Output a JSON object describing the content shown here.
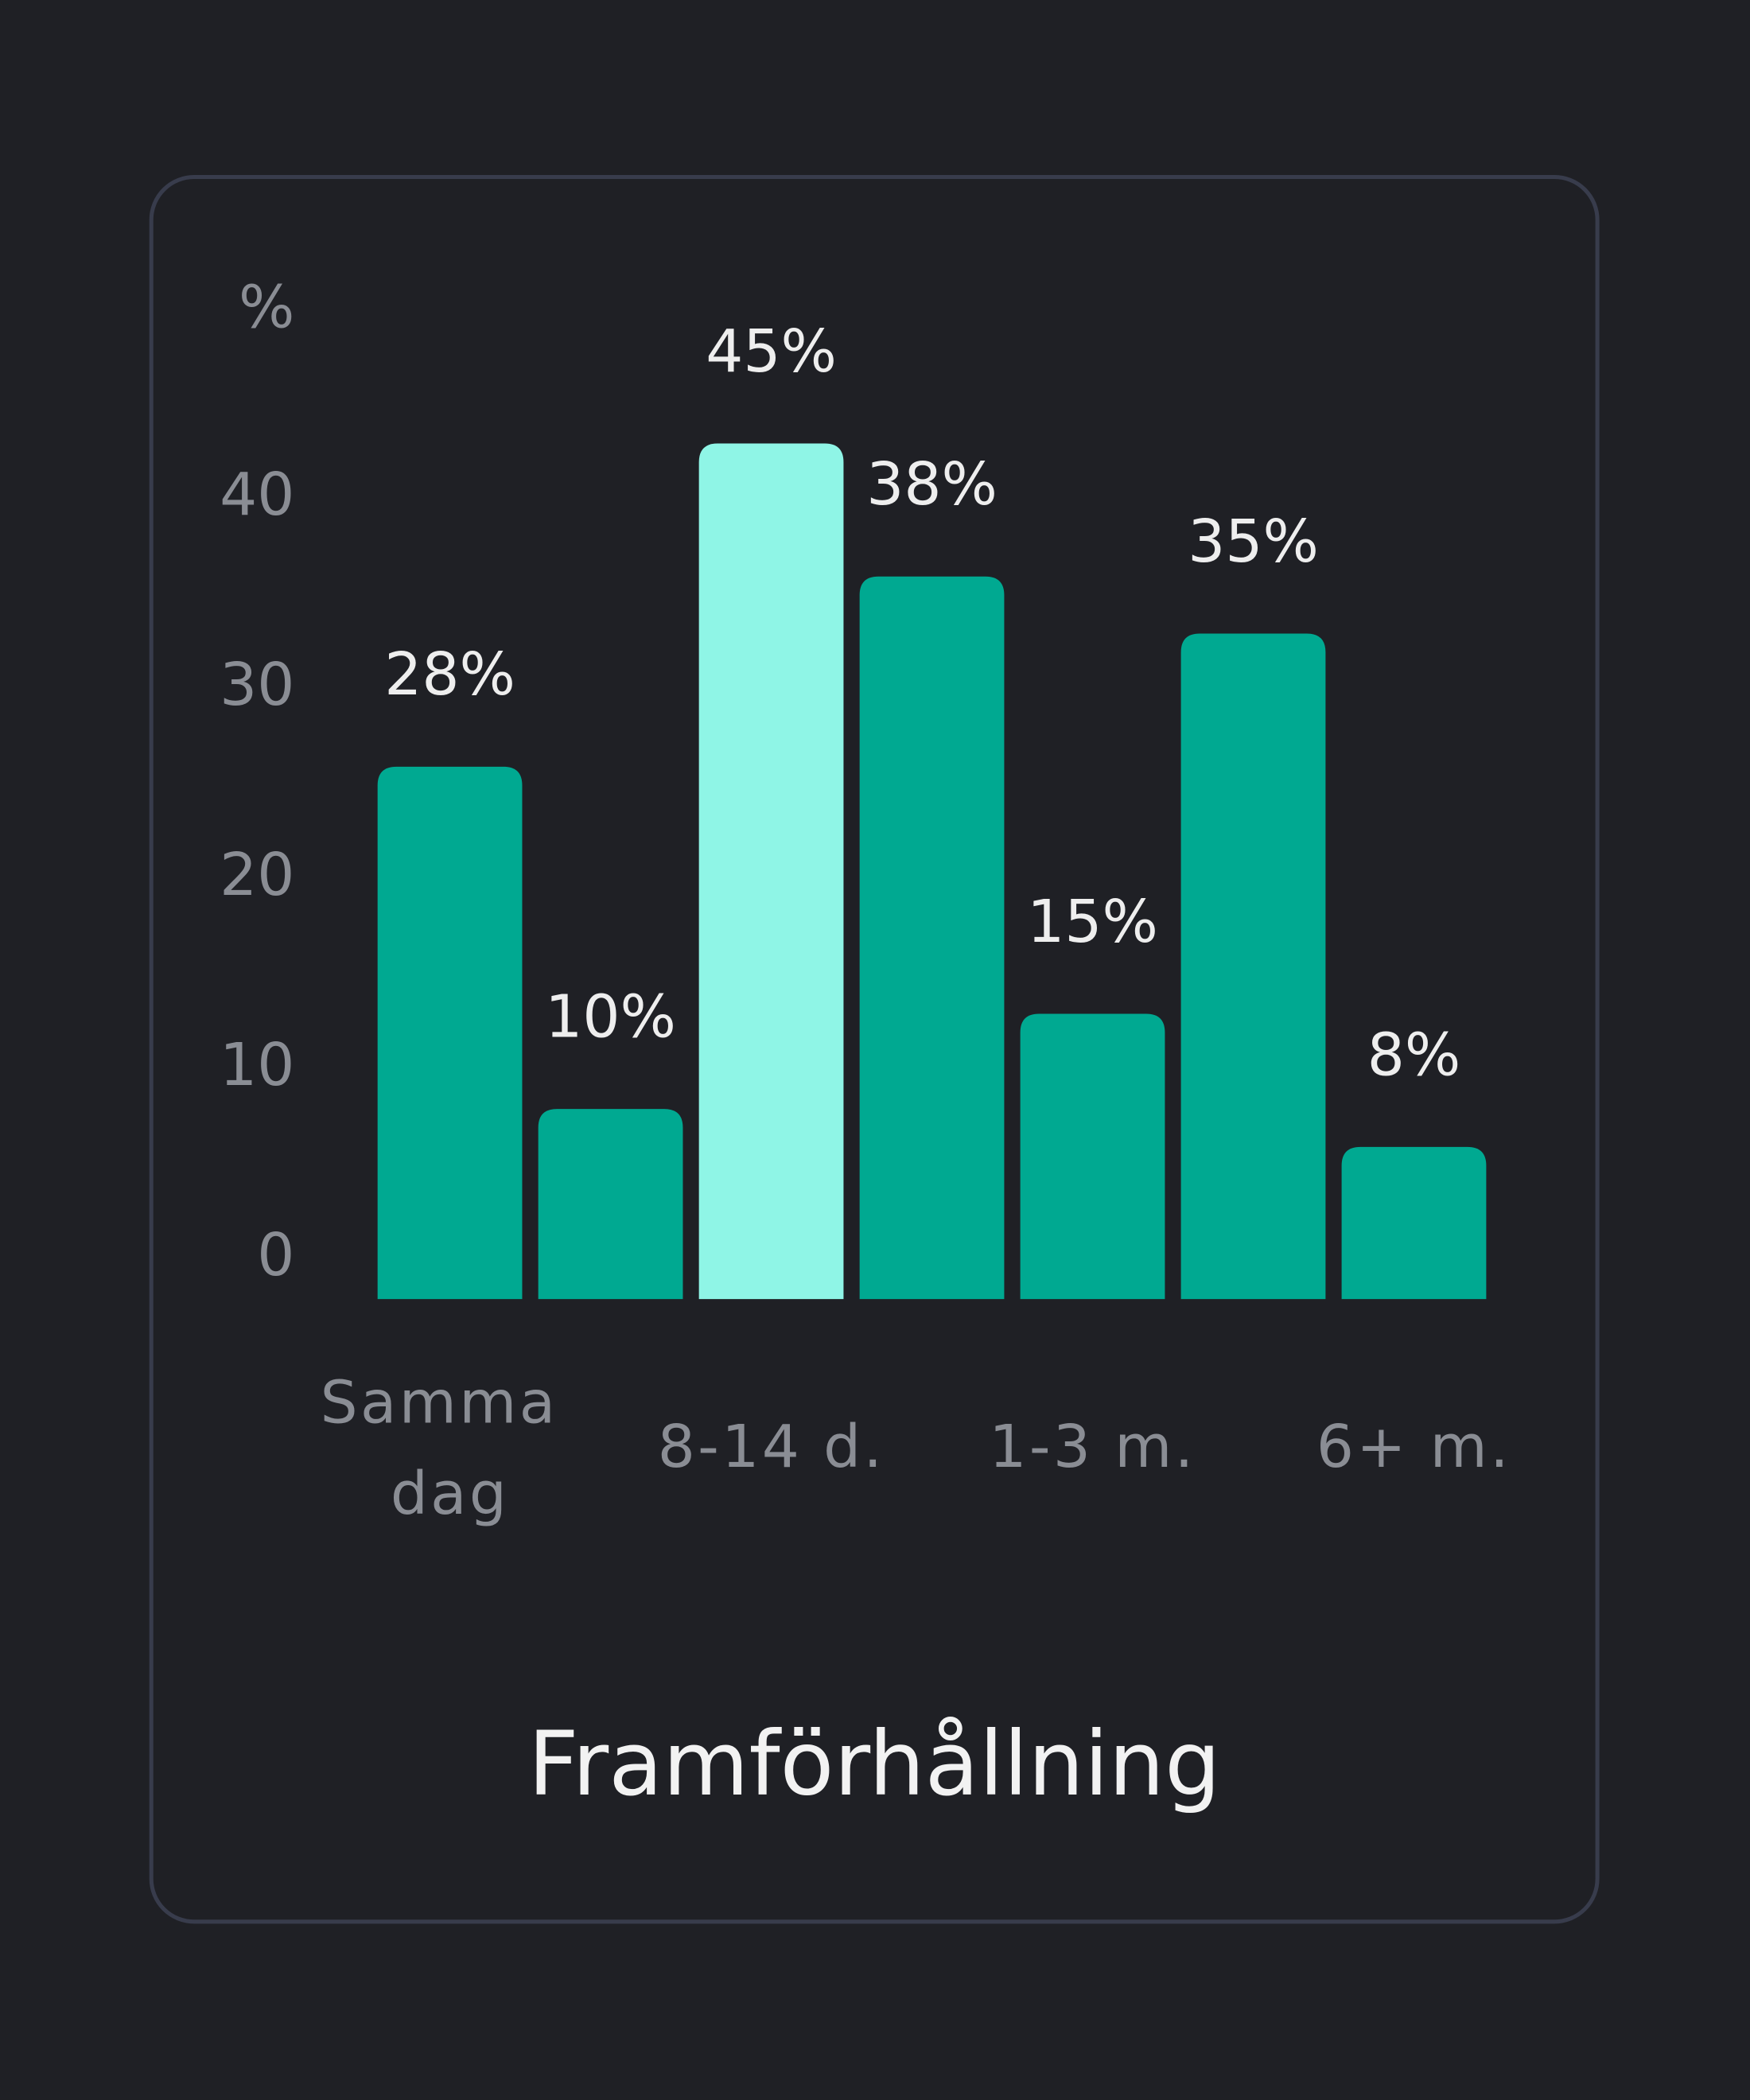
{
  "chart_data": {
    "type": "bar",
    "title": "Framförhållning",
    "y_label": "%",
    "categories": [
      "Samma dag",
      null,
      "8-14 d.",
      null,
      "1-3 m.",
      null,
      "6+ m."
    ],
    "values": [
      28,
      10,
      45,
      38,
      15,
      35,
      8
    ],
    "value_labels": [
      "28%",
      "10%",
      "45%",
      "38%",
      "15%",
      "35%",
      "8%"
    ],
    "colors": [
      "#00a991",
      "#00a991",
      "#8ff5e6",
      "#00a991",
      "#00a991",
      "#00a991",
      "#00a991"
    ],
    "ylim": [
      0,
      50
    ],
    "yticks": [
      0,
      10,
      20,
      30,
      40
    ],
    "grid": false
  }
}
